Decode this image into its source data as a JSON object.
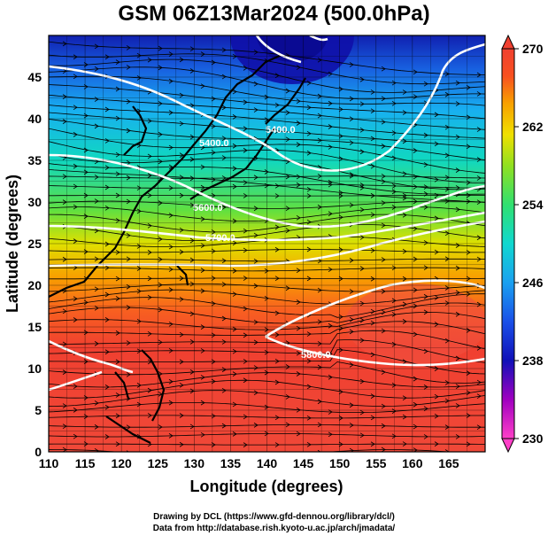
{
  "title": "GSM 06Z13Mar2024 (500.0hPa)",
  "xaxis": {
    "label": "Longitude (degrees)",
    "range": [
      110,
      170
    ],
    "ticks": [
      "110",
      "115",
      "120",
      "125",
      "130",
      "135",
      "140",
      "145",
      "150",
      "155",
      "160",
      "165"
    ]
  },
  "yaxis": {
    "label": "Latitude  (degrees)",
    "range": [
      0,
      50
    ],
    "ticks": [
      "0",
      "5",
      "10",
      "15",
      "20",
      "25",
      "30",
      "35",
      "40",
      "45"
    ]
  },
  "colorbar": {
    "ticks": [
      "230",
      "238",
      "246",
      "254",
      "262",
      "270"
    ],
    "range": [
      230,
      270
    ],
    "colors": [
      "#ff40c8",
      "#a000c0",
      "#1010b8",
      "#1a50e8",
      "#1aa0f0",
      "#10d8d0",
      "#30e070",
      "#90e020",
      "#f0e000",
      "#f8a000",
      "#f85020",
      "#f04030"
    ]
  },
  "contours": [
    {
      "label": "5400.0"
    },
    {
      "label": "5400.0"
    },
    {
      "label": "5600.0"
    },
    {
      "label": "5700.0"
    },
    {
      "label": "5800.0"
    }
  ],
  "credits": {
    "line1": "Drawing by DCL (https://www.gfd-dennou.org/library/dcl/)",
    "line2": "Data from http://database.rish.kyoto-u.ac.jp/arch/jmadata/"
  }
}
